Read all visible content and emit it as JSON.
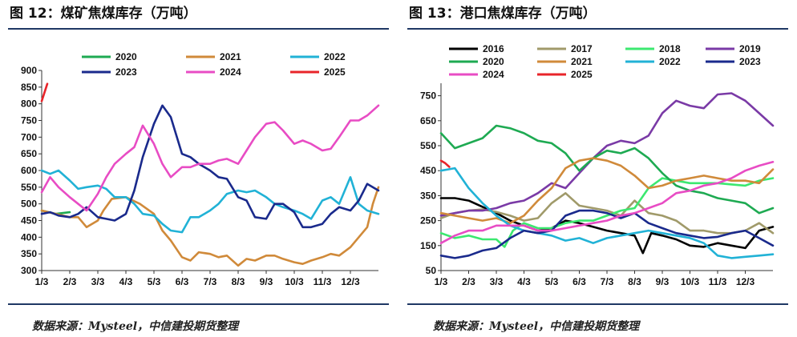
{
  "left": {
    "title": "图 12：煤矿焦煤库存（万吨）",
    "source": "数据来源：Mysteel，中信建投期货整理",
    "chart_data": {
      "type": "line",
      "title": "煤矿焦煤库存（万吨）",
      "xlabel": "",
      "ylabel": "",
      "x_ticks": [
        "1/3",
        "2/3",
        "3/3",
        "4/3",
        "5/3",
        "6/3",
        "7/3",
        "8/3",
        "9/3",
        "10/3",
        "11/3",
        "12/3"
      ],
      "y_ticks": [
        "300",
        "350",
        "400",
        "450",
        "500",
        "550",
        "600",
        "650",
        "700",
        "750",
        "800",
        "850",
        "900"
      ],
      "ylim": [
        300,
        900
      ],
      "xlim": [
        0,
        12
      ],
      "legend": "top",
      "series": [
        {
          "name": "2020",
          "color": "#1eaa52",
          "x": [
            0,
            0.5,
            1
          ],
          "y": [
            480,
            470,
            475
          ]
        },
        {
          "name": "2021",
          "color": "#d08a3a",
          "x": [
            0,
            0.5,
            1,
            1.3,
            1.6,
            2,
            2.2,
            2.5,
            3,
            3.5,
            4,
            4.3,
            4.6,
            5,
            5.3,
            5.6,
            6,
            6.3,
            6.6,
            7,
            7.3,
            7.6,
            8,
            8.3,
            8.6,
            9,
            9.3,
            9.6,
            10,
            10.3,
            10.6,
            11,
            11.3,
            11.6,
            11.8,
            12
          ],
          "y": [
            480,
            470,
            460,
            460,
            430,
            450,
            480,
            515,
            520,
            500,
            470,
            420,
            390,
            340,
            330,
            355,
            350,
            340,
            345,
            315,
            335,
            330,
            345,
            345,
            335,
            325,
            320,
            330,
            340,
            350,
            345,
            370,
            400,
            430,
            500,
            550
          ]
        },
        {
          "name": "2022",
          "color": "#21b2d6",
          "x": [
            0,
            0.3,
            0.6,
            1,
            1.3,
            1.6,
            2,
            2.3,
            2.6,
            3,
            3.3,
            3.6,
            4,
            4.3,
            4.6,
            5,
            5.3,
            5.6,
            6,
            6.3,
            6.6,
            7,
            7.3,
            7.6,
            8,
            8.3,
            8.6,
            9,
            9.3,
            9.6,
            10,
            10.3,
            10.6,
            11,
            11.3,
            11.6,
            12
          ],
          "y": [
            600,
            590,
            600,
            570,
            545,
            550,
            555,
            545,
            520,
            520,
            500,
            470,
            465,
            440,
            420,
            415,
            460,
            460,
            480,
            500,
            530,
            540,
            535,
            540,
            520,
            500,
            490,
            480,
            470,
            455,
            510,
            520,
            500,
            580,
            500,
            480,
            470
          ]
        },
        {
          "name": "2023",
          "color": "#1a2a8c",
          "x": [
            0,
            0.3,
            0.6,
            1,
            1.3,
            1.6,
            2,
            2.3,
            2.6,
            3,
            3.3,
            3.6,
            4,
            4.3,
            4.6,
            5,
            5.3,
            5.6,
            6,
            6.3,
            6.6,
            7,
            7.3,
            7.6,
            8,
            8.3,
            8.6,
            9,
            9.3,
            9.6,
            10,
            10.3,
            10.6,
            11,
            11.3,
            11.6,
            12
          ],
          "y": [
            470,
            475,
            465,
            460,
            470,
            490,
            460,
            455,
            450,
            470,
            540,
            640,
            740,
            795,
            760,
            650,
            640,
            620,
            600,
            580,
            575,
            520,
            510,
            460,
            455,
            500,
            500,
            475,
            430,
            430,
            440,
            470,
            490,
            480,
            510,
            560,
            540
          ]
        },
        {
          "name": "2024",
          "color": "#e84cc4",
          "x": [
            0,
            0.3,
            0.6,
            1,
            1.3,
            1.6,
            2,
            2.3,
            2.6,
            3,
            3.3,
            3.6,
            4,
            4.3,
            4.6,
            5,
            5.3,
            5.6,
            6,
            6.3,
            6.6,
            7,
            7.3,
            7.6,
            8,
            8.3,
            8.6,
            9,
            9.3,
            9.6,
            10,
            10.3,
            10.6,
            11,
            11.3,
            11.6,
            12
          ],
          "y": [
            535,
            580,
            550,
            520,
            500,
            480,
            530,
            580,
            620,
            650,
            670,
            735,
            680,
            620,
            580,
            610,
            610,
            620,
            620,
            630,
            635,
            620,
            660,
            700,
            740,
            745,
            720,
            680,
            690,
            680,
            660,
            665,
            700,
            750,
            750,
            765,
            795
          ]
        },
        {
          "name": "2025",
          "color": "#e8242a",
          "x": [
            0,
            0.2
          ],
          "y": [
            808,
            860
          ]
        }
      ]
    }
  },
  "right": {
    "title": "图 13：港口焦煤库存（万吨）",
    "source": "数据来源：Mysteel，中信建投期货整理",
    "chart_data": {
      "type": "line",
      "title": "港口焦煤库存（万吨）",
      "xlabel": "",
      "ylabel": "",
      "x_ticks": [
        "1/3",
        "2/3",
        "3/3",
        "4/3",
        "5/3",
        "6/3",
        "7/3",
        "8/3",
        "9/3",
        "10/3",
        "11/3",
        "12/3"
      ],
      "y_ticks": [
        "50",
        "150",
        "250",
        "350",
        "450",
        "550",
        "650",
        "750"
      ],
      "ylim": [
        50,
        800
      ],
      "xlim": [
        0,
        12
      ],
      "legend": "top",
      "series": [
        {
          "name": "2016",
          "color": "#000000",
          "x": [
            0,
            0.5,
            1,
            1.5,
            2,
            2.5,
            3,
            3.5,
            4,
            4.5,
            5,
            5.5,
            6,
            6.5,
            7,
            7.3,
            7.6,
            8,
            8.5,
            9,
            9.5,
            10,
            10.5,
            11,
            11.5,
            12
          ],
          "y": [
            340,
            340,
            330,
            305,
            280,
            250,
            230,
            210,
            220,
            250,
            240,
            225,
            210,
            200,
            190,
            120,
            200,
            190,
            175,
            150,
            145,
            160,
            150,
            140,
            210,
            225
          ]
        },
        {
          "name": "2017",
          "color": "#a09a6a",
          "x": [
            0,
            0.5,
            1,
            1.5,
            2,
            2.5,
            3,
            3.5,
            4,
            4.5,
            5,
            5.5,
            6,
            6.5,
            7,
            7.5,
            8,
            8.5,
            9,
            9.5,
            10,
            10.5,
            11,
            11.5,
            12
          ],
          "y": [
            260,
            280,
            290,
            295,
            285,
            270,
            250,
            260,
            320,
            360,
            310,
            300,
            290,
            270,
            330,
            280,
            270,
            250,
            210,
            210,
            200,
            200,
            210,
            240,
            200
          ]
        },
        {
          "name": "2018",
          "color": "#3ce870",
          "x": [
            0,
            0.5,
            1,
            1.5,
            2,
            2.3,
            2.6,
            3,
            3.5,
            4,
            4.5,
            5,
            5.5,
            6,
            6.5,
            7,
            7.5,
            8,
            8.5,
            9,
            9.5,
            10,
            10.5,
            11,
            11.5,
            12
          ],
          "y": [
            200,
            180,
            190,
            175,
            175,
            145,
            210,
            240,
            220,
            220,
            240,
            250,
            250,
            270,
            290,
            300,
            380,
            420,
            410,
            400,
            400,
            400,
            395,
            390,
            410,
            420
          ]
        },
        {
          "name": "2019",
          "color": "#7a3aa6",
          "x": [
            0,
            0.5,
            1,
            1.5,
            2,
            2.5,
            3,
            3.5,
            4,
            4.5,
            5,
            5.5,
            6,
            6.5,
            7,
            7.5,
            8,
            8.5,
            9,
            9.5,
            10,
            10.5,
            11,
            11.5,
            12
          ],
          "y": [
            270,
            280,
            290,
            290,
            300,
            320,
            330,
            360,
            400,
            380,
            440,
            500,
            550,
            570,
            560,
            590,
            680,
            730,
            710,
            700,
            755,
            760,
            730,
            680,
            630
          ]
        },
        {
          "name": "2020",
          "color": "#1eaa52",
          "x": [
            0,
            0.5,
            1,
            1.5,
            2,
            2.5,
            3,
            3.5,
            4,
            4.5,
            5,
            5.5,
            6,
            6.5,
            7,
            7.5,
            8,
            8.5,
            9,
            9.5,
            10,
            10.5,
            11,
            11.5,
            12
          ],
          "y": [
            600,
            540,
            560,
            580,
            630,
            620,
            600,
            570,
            560,
            520,
            450,
            500,
            530,
            520,
            540,
            500,
            440,
            390,
            370,
            360,
            340,
            330,
            320,
            280,
            300
          ]
        },
        {
          "name": "2021",
          "color": "#d08a3a",
          "x": [
            0,
            0.5,
            1,
            1.5,
            2,
            2.5,
            3,
            3.5,
            4,
            4.5,
            5,
            5.5,
            6,
            6.5,
            7,
            7.5,
            8,
            8.5,
            9,
            9.5,
            10,
            10.5,
            11,
            11.5,
            12
          ],
          "y": [
            280,
            270,
            260,
            250,
            260,
            240,
            270,
            330,
            380,
            460,
            490,
            500,
            490,
            470,
            430,
            380,
            390,
            410,
            420,
            430,
            420,
            410,
            410,
            400,
            455
          ]
        },
        {
          "name": "2022",
          "color": "#21b2d6",
          "x": [
            0,
            0.5,
            1,
            1.5,
            2,
            2.5,
            3,
            3.5,
            4,
            4.5,
            5,
            5.5,
            6,
            6.5,
            7,
            7.5,
            8,
            8.5,
            9,
            9.5,
            10,
            10.5,
            11,
            11.5,
            12
          ],
          "y": [
            450,
            460,
            380,
            320,
            270,
            230,
            210,
            200,
            190,
            170,
            180,
            160,
            180,
            190,
            200,
            210,
            200,
            190,
            180,
            160,
            110,
            100,
            105,
            110,
            115
          ]
        },
        {
          "name": "2023",
          "color": "#1a2a8c",
          "x": [
            0,
            0.5,
            1,
            1.5,
            2,
            2.5,
            3,
            3.5,
            4,
            4.5,
            5,
            5.5,
            6,
            6.5,
            7,
            7.5,
            8,
            8.5,
            9,
            9.5,
            10,
            10.5,
            11,
            11.5,
            12
          ],
          "y": [
            110,
            100,
            110,
            130,
            140,
            180,
            210,
            200,
            210,
            270,
            290,
            290,
            280,
            260,
            280,
            240,
            220,
            200,
            190,
            180,
            185,
            200,
            210,
            180,
            150
          ]
        },
        {
          "name": "2024",
          "color": "#e84cc4",
          "x": [
            0,
            0.5,
            1,
            1.5,
            2,
            2.5,
            3,
            3.5,
            4,
            4.5,
            5,
            5.5,
            6,
            6.5,
            7,
            7.5,
            8,
            8.5,
            9,
            9.5,
            10,
            10.5,
            11,
            11.5,
            12
          ],
          "y": [
            160,
            190,
            210,
            210,
            230,
            230,
            230,
            210,
            210,
            220,
            230,
            240,
            250,
            270,
            280,
            300,
            320,
            360,
            370,
            390,
            400,
            420,
            450,
            470,
            485
          ]
        },
        {
          "name": "2025",
          "color": "#e8242a",
          "x": [
            0,
            0.15,
            0.3
          ],
          "y": [
            490,
            480,
            465
          ]
        }
      ]
    }
  }
}
